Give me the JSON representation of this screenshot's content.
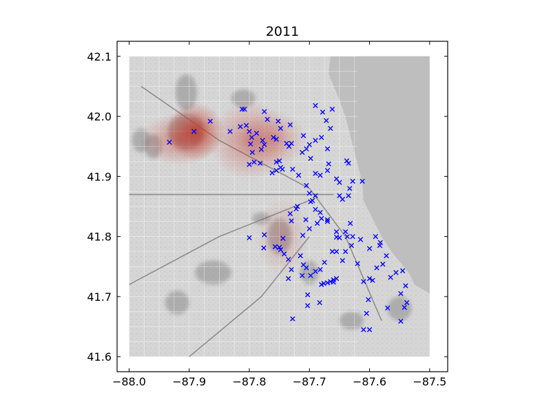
{
  "chart_data": {
    "type": "scatter",
    "title": "2011",
    "xlabel": "",
    "ylabel": "",
    "xlim": [
      -88.02,
      -87.47
    ],
    "ylim": [
      41.575,
      42.125
    ],
    "x_ticks": [
      -88.0,
      -87.9,
      -87.8,
      -87.7,
      -87.6,
      -87.5
    ],
    "y_ticks": [
      41.6,
      41.7,
      41.8,
      41.9,
      42.0,
      42.1
    ],
    "x_tick_labels": [
      "−88.0",
      "−87.9",
      "−87.8",
      "−87.7",
      "−87.6",
      "−87.5"
    ],
    "y_tick_labels": [
      "41.6",
      "41.7",
      "41.8",
      "41.9",
      "42.0",
      "42.1"
    ],
    "grid": false,
    "background_map_extent": {
      "x": [
        -88.0,
        -87.5
      ],
      "y": [
        41.6,
        42.1
      ]
    },
    "marker": "x",
    "marker_color": "#0000ff",
    "heatmap_color": "#c0392b",
    "heatmap_blobs": [
      {
        "x": -87.89,
        "y": 41.975,
        "sx": 0.022,
        "sy": 0.022,
        "weight": 1.0
      },
      {
        "x": -87.915,
        "y": 41.962,
        "sx": 0.03,
        "sy": 0.02,
        "weight": 0.6
      },
      {
        "x": -87.8,
        "y": 41.96,
        "sx": 0.03,
        "sy": 0.03,
        "weight": 0.55
      },
      {
        "x": -87.76,
        "y": 41.962,
        "sx": 0.025,
        "sy": 0.022,
        "weight": 0.45
      },
      {
        "x": -87.745,
        "y": 41.8,
        "sx": 0.02,
        "sy": 0.03,
        "weight": 0.28
      }
    ],
    "points": [
      [
        -87.933,
        41.957
      ],
      [
        -87.892,
        41.975
      ],
      [
        -87.865,
        41.992
      ],
      [
        -87.812,
        42.012
      ],
      [
        -87.808,
        42.012
      ],
      [
        -87.775,
        42.008
      ],
      [
        -87.77,
        41.995
      ],
      [
        -87.832,
        41.975
      ],
      [
        -87.815,
        41.983
      ],
      [
        -87.805,
        41.985
      ],
      [
        -87.8,
        41.975
      ],
      [
        -87.796,
        41.965
      ],
      [
        -87.788,
        41.972
      ],
      [
        -87.778,
        41.96
      ],
      [
        -87.775,
        41.953
      ],
      [
        -87.798,
        41.954
      ],
      [
        -87.78,
        41.945
      ],
      [
        -87.795,
        41.94
      ],
      [
        -87.8,
        41.92
      ],
      [
        -87.792,
        41.924
      ],
      [
        -87.782,
        41.922
      ],
      [
        -87.752,
        41.992
      ],
      [
        -87.748,
        41.98
      ],
      [
        -87.76,
        41.965
      ],
      [
        -87.755,
        41.962
      ],
      [
        -87.732,
        41.986
      ],
      [
        -87.738,
        41.955
      ],
      [
        -87.734,
        41.95
      ],
      [
        -87.73,
        41.955
      ],
      [
        -87.745,
        41.912
      ],
      [
        -87.748,
        41.915
      ],
      [
        -87.755,
        41.91
      ],
      [
        -87.762,
        41.906
      ],
      [
        -87.755,
        41.924
      ],
      [
        -87.75,
        41.926
      ],
      [
        -87.728,
        41.912
      ],
      [
        -87.718,
        41.902
      ],
      [
        -87.705,
        41.885
      ],
      [
        -87.7,
        41.872
      ],
      [
        -87.69,
        41.868
      ],
      [
        -87.698,
        41.858
      ],
      [
        -87.72,
        41.85
      ],
      [
        -87.722,
        41.846
      ],
      [
        -87.69,
        41.845
      ],
      [
        -87.682,
        41.84
      ],
      [
        -87.68,
        41.83
      ],
      [
        -87.67,
        41.828
      ],
      [
        -87.655,
        41.808
      ],
      [
        -87.65,
        41.798
      ],
      [
        -87.732,
        41.838
      ],
      [
        -87.73,
        41.826
      ],
      [
        -87.711,
        41.802
      ],
      [
        -87.8,
        41.798
      ],
      [
        -87.775,
        41.803
      ],
      [
        -87.757,
        41.783
      ],
      [
        -87.75,
        41.782
      ],
      [
        -87.748,
        41.778
      ],
      [
        -87.742,
        41.771
      ],
      [
        -87.735,
        41.762
      ],
      [
        -87.73,
        41.745
      ],
      [
        -87.715,
        41.768
      ],
      [
        -87.71,
        41.753
      ],
      [
        -87.705,
        41.748
      ],
      [
        -87.698,
        41.735
      ],
      [
        -87.69,
        41.742
      ],
      [
        -87.675,
        41.757
      ],
      [
        -87.662,
        41.775
      ],
      [
        -87.655,
        41.775
      ],
      [
        -87.645,
        41.76
      ],
      [
        -87.64,
        41.775
      ],
      [
        -87.637,
        41.8
      ],
      [
        -87.63,
        41.785
      ],
      [
        -87.68,
        41.72
      ],
      [
        -87.676,
        41.722
      ],
      [
        -87.67,
        41.723
      ],
      [
        -87.665,
        41.725
      ],
      [
        -87.66,
        41.724
      ],
      [
        -87.655,
        41.73
      ],
      [
        -87.703,
        41.703
      ],
      [
        -87.703,
        41.685
      ],
      [
        -87.683,
        41.69
      ],
      [
        -87.728,
        41.663
      ],
      [
        -87.61,
        41.645
      ],
      [
        -87.605,
        41.672
      ],
      [
        -87.602,
        41.695
      ],
      [
        -87.6,
        41.73
      ],
      [
        -87.595,
        41.727
      ],
      [
        -87.588,
        41.748
      ],
      [
        -87.578,
        41.754
      ],
      [
        -87.572,
        41.768
      ],
      [
        -87.565,
        41.732
      ],
      [
        -87.556,
        41.74
      ],
      [
        -87.545,
        41.743
      ],
      [
        -87.548,
        41.705
      ],
      [
        -87.54,
        41.718
      ],
      [
        -87.538,
        41.69
      ],
      [
        -87.542,
        41.682
      ],
      [
        -87.548,
        41.659
      ],
      [
        -87.57,
        41.681
      ],
      [
        -87.6,
        41.78
      ],
      [
        -87.59,
        41.8
      ],
      [
        -87.582,
        41.79
      ],
      [
        -87.615,
        41.795
      ],
      [
        -87.62,
        41.755
      ],
      [
        -87.61,
        41.725
      ],
      [
        -87.662,
        42.012
      ],
      [
        -87.678,
        42.007
      ],
      [
        -87.69,
        42.018
      ],
      [
        -87.672,
        41.993
      ],
      [
        -87.665,
        41.98
      ],
      [
        -87.68,
        41.965
      ],
      [
        -87.69,
        41.96
      ],
      [
        -87.7,
        41.953
      ],
      [
        -87.705,
        41.946
      ],
      [
        -87.71,
        41.968
      ],
      [
        -87.712,
        41.94
      ],
      [
        -87.698,
        41.93
      ],
      [
        -87.69,
        41.905
      ],
      [
        -87.67,
        41.946
      ],
      [
        -87.668,
        41.921
      ],
      [
        -87.67,
        41.91
      ],
      [
        -87.655,
        41.896
      ],
      [
        -87.65,
        41.89
      ],
      [
        -87.638,
        41.926
      ],
      [
        -87.635,
        41.922
      ],
      [
        -87.628,
        41.892
      ],
      [
        -87.633,
        41.88
      ],
      [
        -87.65,
        41.868
      ],
      [
        -87.645,
        41.862
      ],
      [
        -87.635,
        41.868
      ],
      [
        -87.612,
        41.892
      ],
      [
        -87.682,
        41.902
      ],
      [
        -87.695,
        41.86
      ],
      [
        -87.687,
        41.822
      ],
      [
        -87.67,
        41.825
      ],
      [
        -87.632,
        41.822
      ],
      [
        -87.655,
        41.799
      ],
      [
        -87.64,
        41.808
      ],
      [
        -87.7,
        41.813
      ],
      [
        -87.706,
        41.828
      ],
      [
        -87.744,
        41.797
      ],
      [
        -87.776,
        41.781
      ],
      [
        -87.735,
        41.73
      ],
      [
        -87.712,
        41.735
      ],
      [
        -87.66,
        41.728
      ],
      [
        -87.682,
        41.745
      ],
      [
        -87.628,
        41.8
      ],
      [
        -87.6,
        41.645
      ],
      [
        -87.583,
        41.785
      ]
    ]
  }
}
